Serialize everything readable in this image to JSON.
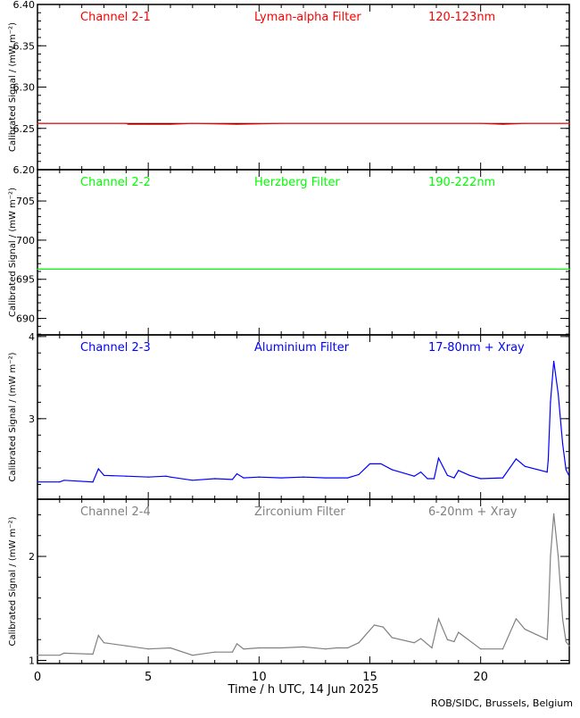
{
  "credit": "ROB/SIDC, Brussels, Belgium",
  "chart_data": [
    {
      "type": "line",
      "title": [
        "Channel 2-1",
        "Lyman-alpha Filter",
        "120-123nm"
      ],
      "color": "#ff0000",
      "ylabel": "Calibrated Signal / (mW m^-2)",
      "ylim": [
        6.2,
        6.4
      ],
      "yticks": [
        6.2,
        6.25,
        6.3,
        6.35,
        6.4
      ],
      "ytick_labels": [
        "6.20",
        "6.25",
        "6.30",
        "6.35",
        "6.40"
      ],
      "points": [
        [
          0,
          6.256
        ],
        [
          4,
          6.256
        ],
        [
          4.1,
          6.255
        ],
        [
          5,
          6.255
        ],
        [
          6,
          6.255
        ],
        [
          7,
          6.256
        ],
        [
          9,
          6.255
        ],
        [
          11,
          6.256
        ],
        [
          20,
          6.256
        ],
        [
          21,
          6.255
        ],
        [
          22,
          6.256
        ],
        [
          24,
          6.256
        ]
      ],
      "reference_line": 6.256
    },
    {
      "type": "line",
      "title": [
        "Channel 2-2",
        "Herzberg Filter",
        "190-222nm"
      ],
      "color": "#00ff00",
      "ylabel": "Calibrated Signal / (mW m^-2)",
      "ylim": [
        687.9,
        709
      ],
      "yticks": [
        690,
        695,
        700,
        705
      ],
      "ytick_labels": [
        "690",
        "695",
        "700",
        "705"
      ],
      "points": [
        [
          0,
          696.3
        ],
        [
          24,
          696.3
        ]
      ]
    },
    {
      "type": "line",
      "title": [
        "Channel 2-3",
        "Aluminium Filter",
        "17-80nm + Xray"
      ],
      "color": "#0000ff",
      "ylabel": "Calibrated Signal / (mW m^-2)",
      "ylim": [
        2.02,
        4.02
      ],
      "yticks": [
        3,
        4
      ],
      "ytick_labels": [
        "3",
        "4"
      ],
      "points": [
        [
          0,
          2.23
        ],
        [
          1,
          2.23
        ],
        [
          1.2,
          2.25
        ],
        [
          2.5,
          2.23
        ],
        [
          2.75,
          2.39
        ],
        [
          3,
          2.31
        ],
        [
          4,
          2.3
        ],
        [
          5,
          2.29
        ],
        [
          5.8,
          2.3
        ],
        [
          6,
          2.29
        ],
        [
          7,
          2.25
        ],
        [
          8,
          2.27
        ],
        [
          8.8,
          2.26
        ],
        [
          9,
          2.33
        ],
        [
          9.3,
          2.28
        ],
        [
          10,
          2.29
        ],
        [
          11,
          2.28
        ],
        [
          12,
          2.29
        ],
        [
          13,
          2.28
        ],
        [
          14,
          2.28
        ],
        [
          14.5,
          2.32
        ],
        [
          15,
          2.45
        ],
        [
          15.5,
          2.45
        ],
        [
          16,
          2.38
        ],
        [
          16.5,
          2.34
        ],
        [
          17,
          2.3
        ],
        [
          17.3,
          2.35
        ],
        [
          17.6,
          2.27
        ],
        [
          17.9,
          2.27
        ],
        [
          18.1,
          2.52
        ],
        [
          18.5,
          2.31
        ],
        [
          18.8,
          2.28
        ],
        [
          19,
          2.37
        ],
        [
          19.5,
          2.31
        ],
        [
          20,
          2.27
        ],
        [
          21,
          2.28
        ],
        [
          21.6,
          2.51
        ],
        [
          22,
          2.42
        ],
        [
          23,
          2.35
        ],
        [
          23.05,
          2.5
        ],
        [
          23.15,
          3.2
        ],
        [
          23.3,
          3.7
        ],
        [
          23.5,
          3.3
        ],
        [
          23.7,
          2.7
        ],
        [
          23.85,
          2.38
        ],
        [
          24,
          2.3
        ]
      ]
    },
    {
      "type": "line",
      "title": [
        "Channel 2-4",
        "Zirconium Filter",
        "6-20nm + Xray"
      ],
      "color": "#808080",
      "ylabel": "Calibrated Signal / (mW m^-2)",
      "xlabel": "Time / h UTC, 14 Jun 2025",
      "ylim": [
        0.97,
        2.55
      ],
      "yticks": [
        1,
        2
      ],
      "ytick_labels": [
        "1",
        "2"
      ],
      "points": [
        [
          0,
          1.05
        ],
        [
          1,
          1.05
        ],
        [
          1.2,
          1.07
        ],
        [
          2.5,
          1.06
        ],
        [
          2.75,
          1.24
        ],
        [
          3,
          1.17
        ],
        [
          4,
          1.14
        ],
        [
          5,
          1.11
        ],
        [
          6,
          1.12
        ],
        [
          7,
          1.05
        ],
        [
          8,
          1.08
        ],
        [
          8.8,
          1.08
        ],
        [
          9,
          1.16
        ],
        [
          9.3,
          1.11
        ],
        [
          10,
          1.12
        ],
        [
          11,
          1.12
        ],
        [
          12,
          1.13
        ],
        [
          13,
          1.11
        ],
        [
          13.5,
          1.12
        ],
        [
          14,
          1.12
        ],
        [
          14.5,
          1.17
        ],
        [
          15.2,
          1.34
        ],
        [
          15.6,
          1.32
        ],
        [
          16,
          1.22
        ],
        [
          17,
          1.17
        ],
        [
          17.3,
          1.21
        ],
        [
          17.8,
          1.12
        ],
        [
          18.1,
          1.4
        ],
        [
          18.5,
          1.2
        ],
        [
          18.8,
          1.18
        ],
        [
          19,
          1.27
        ],
        [
          20,
          1.11
        ],
        [
          21,
          1.11
        ],
        [
          21.6,
          1.4
        ],
        [
          22,
          1.3
        ],
        [
          23,
          1.2
        ],
        [
          23.05,
          1.4
        ],
        [
          23.15,
          2.0
        ],
        [
          23.3,
          2.41
        ],
        [
          23.5,
          2.0
        ],
        [
          23.7,
          1.4
        ],
        [
          23.85,
          1.18
        ],
        [
          24,
          1.14
        ]
      ]
    }
  ],
  "xaxis": {
    "xlim": [
      0,
      24
    ],
    "ticks": [
      0,
      5,
      10,
      15,
      20
    ],
    "tick_labels": [
      "0",
      "5",
      "10",
      "15",
      "20"
    ],
    "label": "Time / h UTC, 14 Jun 2025"
  }
}
